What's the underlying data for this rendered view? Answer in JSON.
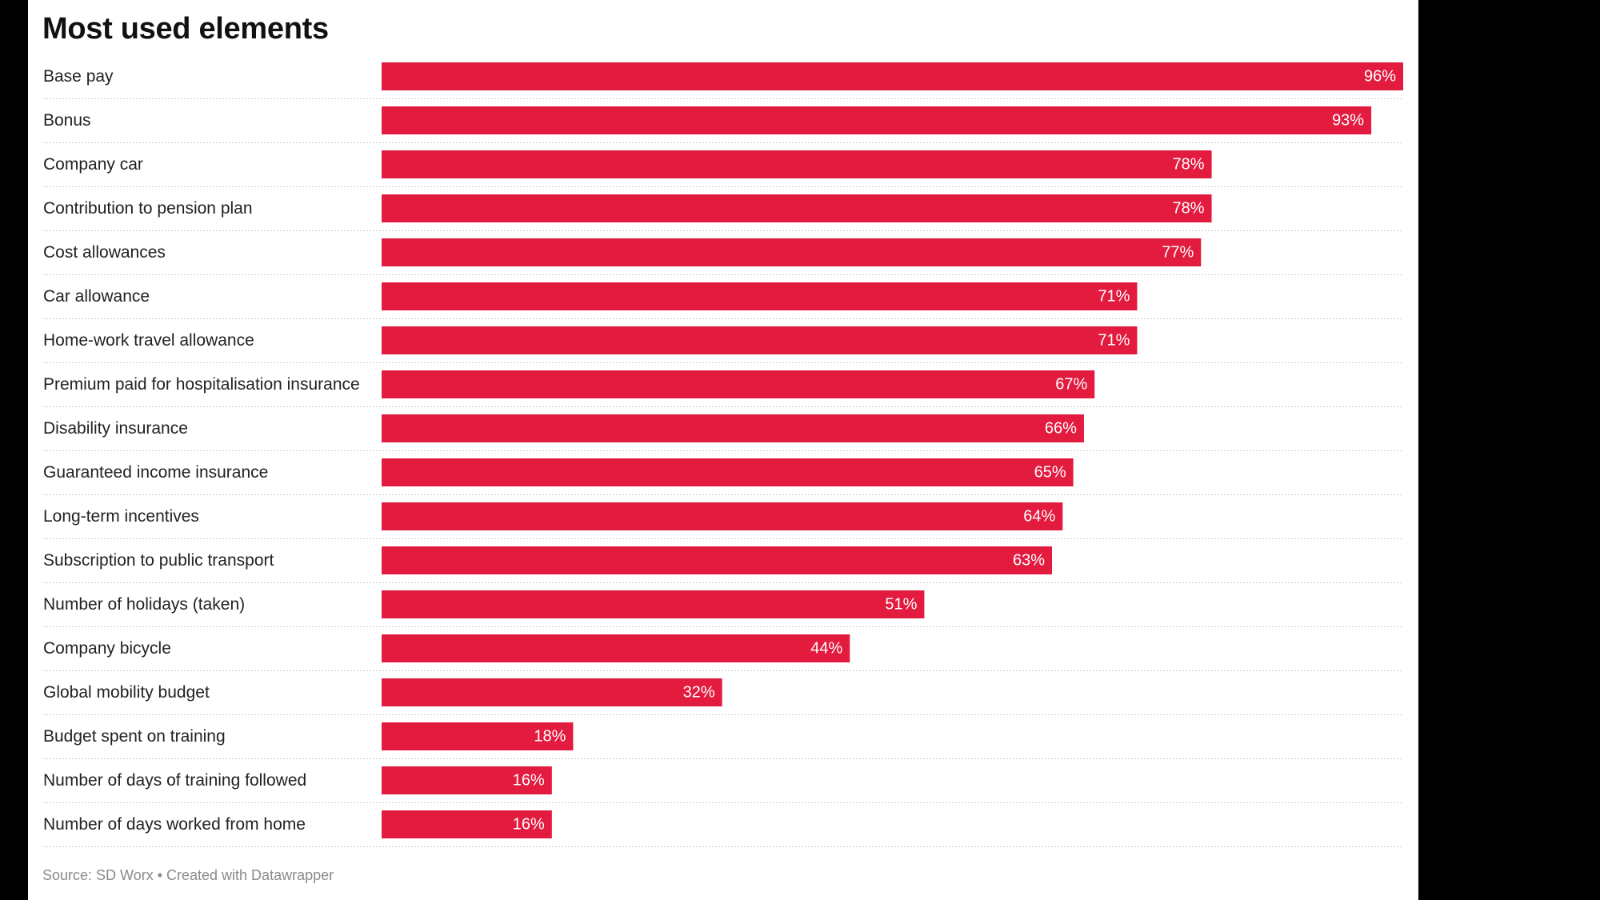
{
  "chart_data": {
    "type": "bar",
    "orientation": "horizontal",
    "title": "Most used elements",
    "categories": [
      "Base pay",
      "Bonus",
      "Company car",
      "Contribution to pension plan",
      "Cost allowances",
      "Car allowance",
      "Home-work travel allowance",
      "Premium paid for hospitalisation insurance",
      "Disability insurance",
      "Guaranteed income insurance",
      "Long-term incentives",
      "Subscription to public transport",
      "Number of holidays (taken)",
      "Company bicycle",
      "Global mobility budget",
      "Budget spent on training",
      "Number of days of training followed",
      "Number of days worked from home"
    ],
    "values": [
      96,
      93,
      78,
      78,
      77,
      71,
      71,
      67,
      66,
      65,
      64,
      63,
      51,
      44,
      32,
      18,
      16,
      16
    ],
    "value_suffix": "%",
    "xlim": [
      0,
      96
    ],
    "bar_color": "#e31b3f",
    "source": "Source: SD Worx • Created with Datawrapper"
  }
}
